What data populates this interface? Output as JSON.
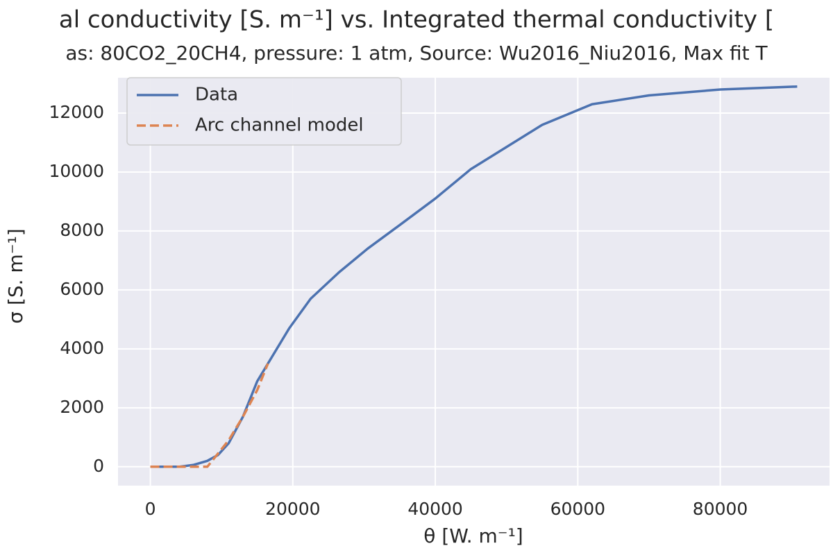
{
  "chart_data": {
    "type": "line",
    "title": "al conductivity [S. m⁻¹] vs. Integrated thermal conductivity [",
    "subtitle": "as: 80CO2_20CH4, pressure: 1 atm, Source: Wu2016_Niu2016, Max fit T",
    "x_label": "θ [W. m⁻¹]",
    "y_label": "σ [S. m⁻¹]",
    "xlim": [
      -4540,
      95340
    ],
    "ylim": [
      -640,
      13200
    ],
    "xticks": [
      0,
      20000,
      40000,
      60000,
      80000
    ],
    "yticks": [
      0,
      2000,
      4000,
      6000,
      8000,
      10000,
      12000
    ],
    "grid": true,
    "legend": "upper-left",
    "series": [
      {
        "name": "Data",
        "color": "#4c72b0",
        "dash": "solid",
        "x": [
          0,
          2000,
          4000,
          6000,
          8000,
          9500,
          11000,
          13000,
          15000,
          17000,
          19500,
          22500,
          26500,
          30500,
          35000,
          40000,
          45000,
          50000,
          55000,
          62000,
          70000,
          80000,
          90800
        ],
        "values": [
          0,
          0,
          0,
          60,
          200,
          400,
          800,
          1700,
          2900,
          3700,
          4700,
          5700,
          6600,
          7400,
          8200,
          9100,
          10100,
          10850,
          11600,
          12300,
          12600,
          12800,
          12900
        ]
      },
      {
        "name": "Arc channel model",
        "color": "#dd8452",
        "dash": "dashed",
        "x": [
          0,
          8000,
          9000,
          11000,
          13000,
          15000,
          16500
        ],
        "values": [
          0,
          0,
          300,
          900,
          1700,
          2600,
          3500
        ]
      }
    ]
  }
}
